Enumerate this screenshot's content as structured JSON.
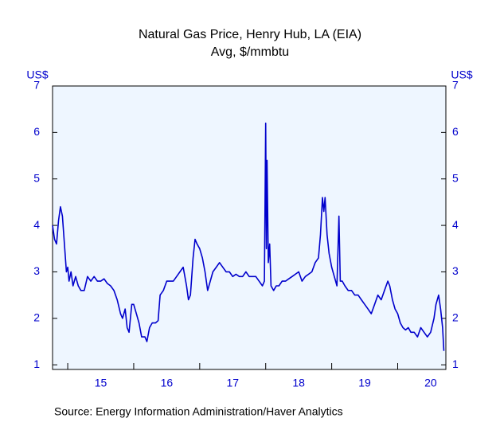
{
  "chart_data": {
    "type": "line",
    "title": "Natural Gas Price, Henry Hub, LA (EIA)",
    "subtitle": "Avg, $/mmbtu",
    "y_label_left": "US$",
    "y_label_right": "US$",
    "source": "Source:  Energy Information Administration/Haver Analytics",
    "xlim": [
      2014.77,
      2020.73
    ],
    "ylim": [
      0.9,
      7
    ],
    "yticks": [
      1,
      2,
      3,
      4,
      5,
      6,
      7
    ],
    "y2lim": [
      0.9,
      7
    ],
    "y2ticks": [
      1,
      2,
      3,
      4,
      5,
      6,
      7
    ],
    "xticks": [
      {
        "value": 2015.5,
        "label": "15"
      },
      {
        "value": 2016.5,
        "label": "16"
      },
      {
        "value": 2017.5,
        "label": "17"
      },
      {
        "value": 2018.5,
        "label": "18"
      },
      {
        "value": 2019.5,
        "label": "19"
      },
      {
        "value": 2020.5,
        "label": "20"
      }
    ],
    "xtick_marks": [
      2015,
      2016,
      2017,
      2018,
      2019,
      2020
    ],
    "series": [
      {
        "color": "#0000cc",
        "x": [
          2014.77,
          2014.8,
          2014.83,
          2014.86,
          2014.89,
          2014.92,
          2014.95,
          2014.98,
          2015.0,
          2015.02,
          2015.05,
          2015.08,
          2015.12,
          2015.16,
          2015.2,
          2015.25,
          2015.3,
          2015.35,
          2015.4,
          2015.45,
          2015.5,
          2015.55,
          2015.6,
          2015.65,
          2015.7,
          2015.75,
          2015.8,
          2015.83,
          2015.87,
          2015.9,
          2015.93,
          2015.97,
          2016.0,
          2016.04,
          2016.08,
          2016.12,
          2016.17,
          2016.2,
          2016.24,
          2016.28,
          2016.33,
          2016.37,
          2016.4,
          2016.45,
          2016.5,
          2016.55,
          2016.6,
          2016.65,
          2016.7,
          2016.75,
          2016.8,
          2016.83,
          2016.86,
          2016.9,
          2016.93,
          2016.96,
          2017.0,
          2017.04,
          2017.08,
          2017.12,
          2017.16,
          2017.2,
          2017.25,
          2017.3,
          2017.35,
          2017.4,
          2017.45,
          2017.5,
          2017.55,
          2017.6,
          2017.65,
          2017.7,
          2017.75,
          2017.8,
          2017.85,
          2017.9,
          2017.95,
          2017.98,
          2018.0,
          2018.01,
          2018.02,
          2018.04,
          2018.06,
          2018.08,
          2018.12,
          2018.16,
          2018.2,
          2018.25,
          2018.3,
          2018.35,
          2018.4,
          2018.45,
          2018.5,
          2018.55,
          2018.6,
          2018.65,
          2018.7,
          2018.75,
          2018.8,
          2018.83,
          2018.86,
          2018.88,
          2018.9,
          2018.93,
          2018.96,
          2019.0,
          2019.04,
          2019.08,
          2019.11,
          2019.13,
          2019.16,
          2019.2,
          2019.25,
          2019.3,
          2019.35,
          2019.4,
          2019.45,
          2019.5,
          2019.55,
          2019.6,
          2019.65,
          2019.7,
          2019.75,
          2019.8,
          2019.85,
          2019.88,
          2019.92,
          2019.96,
          2020.0,
          2020.04,
          2020.08,
          2020.12,
          2020.16,
          2020.2,
          2020.25,
          2020.3,
          2020.35,
          2020.4,
          2020.45,
          2020.5,
          2020.55,
          2020.58,
          2020.62,
          2020.65,
          2020.68,
          2020.7
        ],
        "values": [
          4.0,
          3.7,
          3.6,
          4.1,
          4.4,
          4.2,
          3.6,
          3.0,
          3.1,
          2.8,
          3.0,
          2.7,
          2.9,
          2.7,
          2.6,
          2.6,
          2.9,
          2.8,
          2.9,
          2.8,
          2.8,
          2.85,
          2.75,
          2.7,
          2.6,
          2.4,
          2.1,
          2.0,
          2.2,
          1.8,
          1.7,
          2.3,
          2.3,
          2.1,
          1.9,
          1.6,
          1.6,
          1.5,
          1.8,
          1.9,
          1.9,
          1.95,
          2.5,
          2.6,
          2.8,
          2.8,
          2.8,
          2.9,
          3.0,
          3.1,
          2.7,
          2.4,
          2.5,
          3.3,
          3.7,
          3.6,
          3.5,
          3.3,
          3.0,
          2.6,
          2.8,
          3.0,
          3.1,
          3.2,
          3.1,
          3.0,
          3.0,
          2.9,
          2.95,
          2.9,
          2.9,
          3.0,
          2.9,
          2.9,
          2.9,
          2.8,
          2.7,
          2.8,
          6.2,
          3.5,
          5.4,
          3.2,
          3.6,
          2.7,
          2.6,
          2.7,
          2.7,
          2.8,
          2.8,
          2.85,
          2.9,
          2.95,
          3.0,
          2.8,
          2.9,
          2.95,
          3.0,
          3.2,
          3.3,
          3.8,
          4.6,
          4.3,
          4.6,
          3.8,
          3.4,
          3.1,
          2.9,
          2.7,
          4.2,
          2.8,
          2.8,
          2.7,
          2.6,
          2.6,
          2.5,
          2.5,
          2.4,
          2.3,
          2.2,
          2.1,
          2.3,
          2.5,
          2.4,
          2.6,
          2.8,
          2.7,
          2.4,
          2.2,
          2.1,
          1.9,
          1.8,
          1.75,
          1.8,
          1.7,
          1.7,
          1.6,
          1.8,
          1.7,
          1.6,
          1.7,
          2.0,
          2.3,
          2.5,
          2.2,
          1.8,
          1.3
        ]
      }
    ],
    "background": "#eef6ff",
    "axis_color": "#0000cc"
  }
}
